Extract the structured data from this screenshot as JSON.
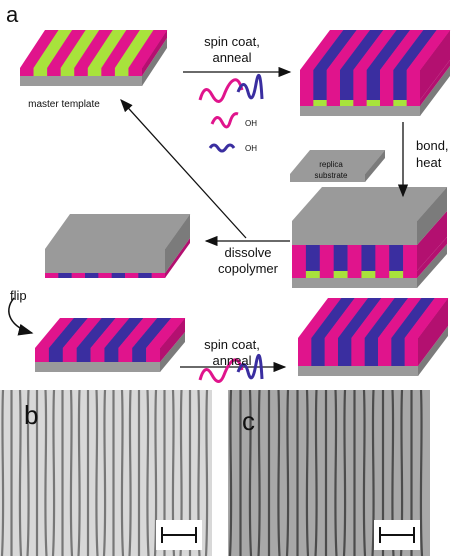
{
  "panel_labels": {
    "a": "a",
    "b": "b",
    "c": "c"
  },
  "steps": {
    "spin_coat_1": [
      "spin coat,",
      "anneal"
    ],
    "master_template": "master template",
    "end_groups": [
      "OH",
      "OH"
    ],
    "replica_substrate": [
      "replica",
      "substrate"
    ],
    "bond_heat": [
      "bond,",
      "heat"
    ],
    "dissolve": [
      "dissolve",
      "copolymer"
    ],
    "flip": "flip",
    "spin_coat_2": [
      "spin coat,",
      "anneal"
    ]
  }
}
